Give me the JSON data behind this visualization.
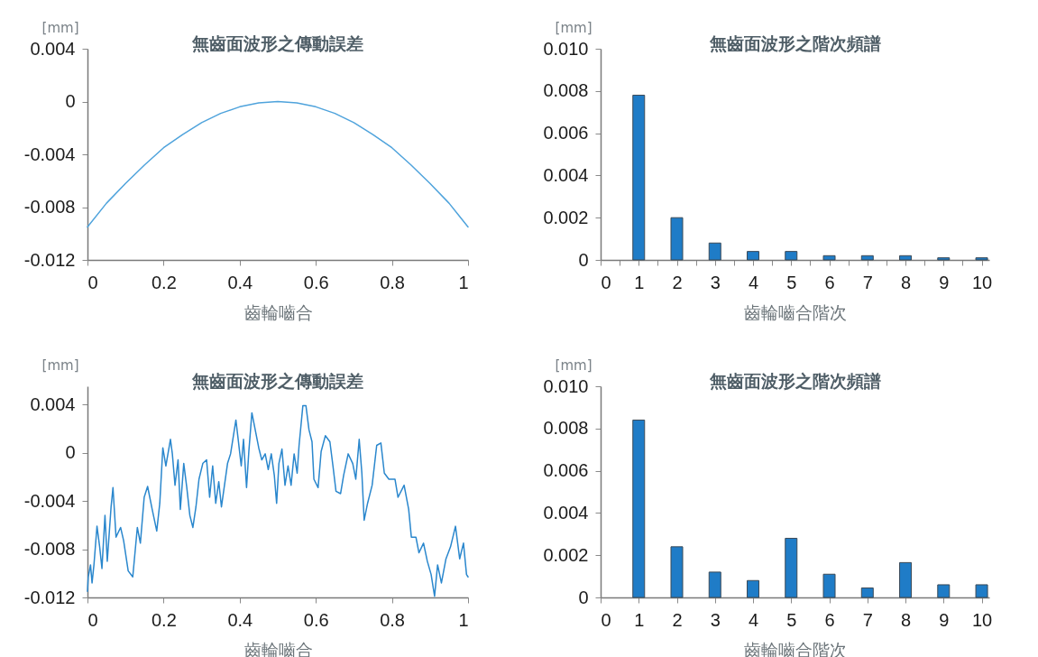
{
  "chart_data": [
    {
      "type": "line",
      "title": "無齒面波形之傳動誤差",
      "xlabel": "齒輪嚙合",
      "ylabel": "[mm]",
      "x": [
        0,
        0.05,
        0.1,
        0.15,
        0.2,
        0.25,
        0.3,
        0.35,
        0.4,
        0.45,
        0.5,
        0.55,
        0.6,
        0.65,
        0.7,
        0.75,
        0.8,
        0.85,
        0.9,
        0.95,
        1
      ],
      "series": [
        {
          "color": "#4fa3dc",
          "values": [
            -0.0095,
            -0.0077,
            -0.0062,
            -0.0048,
            -0.0035,
            -0.0025,
            -0.0016,
            -0.0009,
            -0.0004,
            -0.0001,
            0,
            -0.0001,
            -0.0004,
            -0.0009,
            -0.0016,
            -0.0025,
            -0.0035,
            -0.0048,
            -0.0062,
            -0.0077,
            -0.0095
          ]
        }
      ],
      "xlim": [
        0,
        1
      ],
      "ylim": [
        -0.012,
        0.004
      ],
      "xticks": [
        0,
        0.2,
        0.4,
        0.6,
        0.8,
        1
      ],
      "yticks": [
        -0.012,
        -0.008,
        -0.004,
        0,
        0.004
      ]
    },
    {
      "type": "bar",
      "title": "無齒面波形之階次頻譜",
      "xlabel": "齒輪嚙合階次",
      "ylabel": "[mm]",
      "x": [
        1,
        2,
        3,
        4,
        5,
        6,
        7,
        8,
        9,
        10
      ],
      "series": [
        {
          "color": "#1f7cc7",
          "values": [
            0.0078,
            0.002,
            0.0008,
            0.0004,
            0.0004,
            0.0002,
            0.0002,
            0.0002,
            0.0001,
            0.0001
          ]
        }
      ],
      "xlim": [
        0,
        10.2
      ],
      "ylim": [
        0,
        0.01
      ],
      "xticks": [
        0,
        {
          "value": 0.5,
          "label": null
        },
        1,
        {
          "value": 1.5,
          "label": null
        },
        2,
        {
          "value": 2.5,
          "label": null
        },
        3,
        {
          "value": 3.5,
          "label": null
        },
        4,
        {
          "value": 4.5,
          "label": null
        },
        5,
        {
          "value": 5.5,
          "label": null
        },
        6,
        {
          "value": 6.5,
          "label": null
        },
        7,
        {
          "value": 7.5,
          "label": null
        },
        8,
        {
          "value": 8.5,
          "label": null
        },
        9,
        {
          "value": 9.5,
          "label": null
        },
        10
      ],
      "yticks": [
        0,
        0.002,
        0.004,
        0.006,
        0.008,
        {
          "value": 0.01,
          "label": "0.010"
        }
      ]
    },
    {
      "type": "line",
      "title": "無齒面波形之傳動誤差",
      "xlabel": "齒輪嚙合",
      "ylabel": "[mm]",
      "x": [
        0,
        0.002,
        0.008,
        0.012,
        0.017,
        0.025,
        0.032,
        0.038,
        0.046,
        0.052,
        0.062,
        0.067,
        0.075,
        0.087,
        0.095,
        0.107,
        0.119,
        0.131,
        0.139,
        0.149,
        0.158,
        0.17,
        0.182,
        0.19,
        0.198,
        0.206,
        0.218,
        0.223,
        0.23,
        0.238,
        0.244,
        0.253,
        0.261,
        0.269,
        0.277,
        0.285,
        0.293,
        0.303,
        0.313,
        0.321,
        0.329,
        0.337,
        0.345,
        0.352,
        0.36,
        0.368,
        0.376,
        0.39,
        0.396,
        0.404,
        0.41,
        0.418,
        0.424,
        0.432,
        0.442,
        0.45,
        0.458,
        0.467,
        0.475,
        0.483,
        0.491,
        0.497,
        0.503,
        0.511,
        0.519,
        0.527,
        0.535,
        0.543,
        0.551,
        0.556,
        0.566,
        0.574,
        0.582,
        0.59,
        0.595,
        0.606,
        0.614,
        0.625,
        0.637,
        0.645,
        0.653,
        0.665,
        0.673,
        0.685,
        0.697,
        0.705,
        0.714,
        0.721,
        0.727,
        0.736,
        0.748,
        0.76,
        0.771,
        0.78,
        0.792,
        0.808,
        0.816,
        0.832,
        0.844,
        0.851,
        0.863,
        0.871,
        0.883,
        0.893,
        0.903,
        0.912,
        0.92,
        0.93,
        0.942,
        0.954,
        0.967,
        0.978,
        0.988,
        0.996,
        1
      ],
      "series": [
        {
          "color": "#2a87cd",
          "values": [
            -0.0115,
            -0.0103,
            -0.0093,
            -0.0108,
            -0.0093,
            -0.0061,
            -0.0078,
            -0.0096,
            -0.0052,
            -0.009,
            -0.0045,
            -0.0029,
            -0.007,
            -0.0062,
            -0.0073,
            -0.0098,
            -0.0103,
            -0.0062,
            -0.0075,
            -0.0037,
            -0.0028,
            -0.0047,
            -0.0065,
            -0.0042,
            0.0004,
            -0.0011,
            0.0011,
            -0.0001,
            -0.0027,
            -0.0006,
            -0.0047,
            -0.0009,
            -0.0029,
            -0.0052,
            -0.0062,
            -0.0045,
            -0.0022,
            -0.0009,
            -0.0006,
            -0.0037,
            -0.0011,
            -0.0042,
            -0.0024,
            -0.0045,
            -0.0027,
            -0.0009,
            -0.0001,
            0.0027,
            0.0011,
            -0.0011,
            0.0011,
            -0.0029,
            0.0001,
            0.0033,
            0.0017,
            0.0004,
            -0.0006,
            -0.0001,
            -0.0014,
            -0.0001,
            -0.0019,
            -0.0042,
            -0.0009,
            0.0003,
            -0.0027,
            -0.0011,
            -0.0027,
            -0.0001,
            -0.0017,
            0.0006,
            0.0039,
            0.0039,
            0.0019,
            0.0009,
            -0.0022,
            -0.0029,
            0.0001,
            0.0014,
            0.0009,
            -0.0011,
            -0.0032,
            -0.0034,
            -0.0019,
            -0.0001,
            -0.0009,
            -0.0022,
            0.0011,
            -0.0017,
            -0.0056,
            -0.0042,
            -0.0027,
            0.0006,
            0.0008,
            -0.0017,
            -0.0022,
            -0.0022,
            -0.0037,
            -0.0027,
            -0.0047,
            -0.007,
            -0.007,
            -0.0083,
            -0.0075,
            -0.009,
            -0.0101,
            -0.0119,
            -0.0093,
            -0.0108,
            -0.0088,
            -0.0078,
            -0.0061,
            -0.0088,
            -0.0075,
            -0.0101,
            -0.0103
          ]
        }
      ],
      "xlim": [
        0,
        1
      ],
      "ylim": [
        -0.012,
        0.0055
      ],
      "xticks": [
        0,
        0.2,
        0.4,
        0.6,
        0.8,
        1
      ],
      "yticks": [
        -0.012,
        -0.008,
        -0.004,
        0,
        0.004
      ]
    },
    {
      "type": "bar",
      "title": "無齒面波形之階次頻譜",
      "xlabel": "齒輪嚙合階次",
      "ylabel": "[mm]",
      "x": [
        1,
        2,
        3,
        4,
        5,
        6,
        7,
        8,
        9,
        10
      ],
      "series": [
        {
          "color": "#1f7cc7",
          "values": [
            0.0084,
            0.0024,
            0.0012,
            0.0008,
            0.0028,
            0.0011,
            0.00045,
            0.00165,
            0.0006,
            0.0006
          ]
        }
      ],
      "xlim": [
        0,
        10.2
      ],
      "ylim": [
        0,
        0.01
      ],
      "xticks": [
        0,
        1,
        2,
        3,
        4,
        5,
        6,
        7,
        8,
        9,
        10
      ],
      "yticks": [
        0,
        0.002,
        0.004,
        0.006,
        0.008,
        {
          "value": 0.01,
          "label": "0.010"
        }
      ]
    }
  ]
}
